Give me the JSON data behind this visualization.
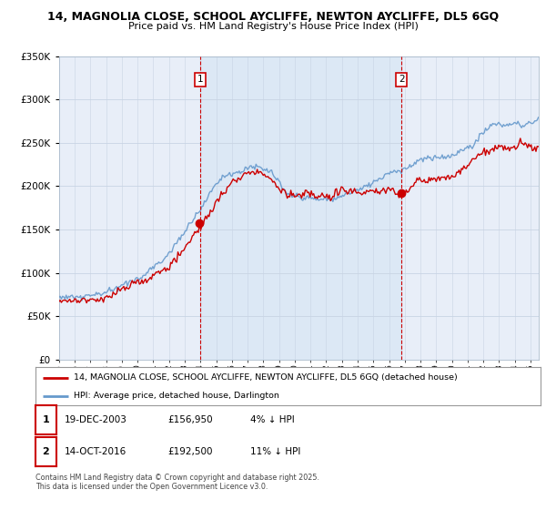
{
  "title_line1": "14, MAGNOLIA CLOSE, SCHOOL AYCLIFFE, NEWTON AYCLIFFE, DL5 6GQ",
  "title_line2": "Price paid vs. HM Land Registry's House Price Index (HPI)",
  "ylim": [
    0,
    350000
  ],
  "yticks": [
    0,
    50000,
    100000,
    150000,
    200000,
    250000,
    300000,
    350000
  ],
  "ytick_labels": [
    "£0",
    "£50K",
    "£100K",
    "£150K",
    "£200K",
    "£250K",
    "£300K",
    "£350K"
  ],
  "background_color": "#e8eef8",
  "shade_color": "#d8e8f4",
  "grid_color": "#c8d4e4",
  "sale1_x": 2003.97,
  "sale2_x": 2016.79,
  "sale1_y": 156950,
  "sale2_y": 192500,
  "sale1_date": "19-DEC-2003",
  "sale1_price": "£156,950",
  "sale1_hpi": "4% ↓ HPI",
  "sale2_date": "14-OCT-2016",
  "sale2_price": "£192,500",
  "sale2_hpi": "11% ↓ HPI",
  "legend_line1": "14, MAGNOLIA CLOSE, SCHOOL AYCLIFFE, NEWTON AYCLIFFE, DL5 6GQ (detached house)",
  "legend_line2": "HPI: Average price, detached house, Darlington",
  "footer": "Contains HM Land Registry data © Crown copyright and database right 2025.\nThis data is licensed under the Open Government Licence v3.0.",
  "hpi_color": "#6699cc",
  "price_color": "#cc0000",
  "xmin": 1995.0,
  "xmax": 2025.5
}
